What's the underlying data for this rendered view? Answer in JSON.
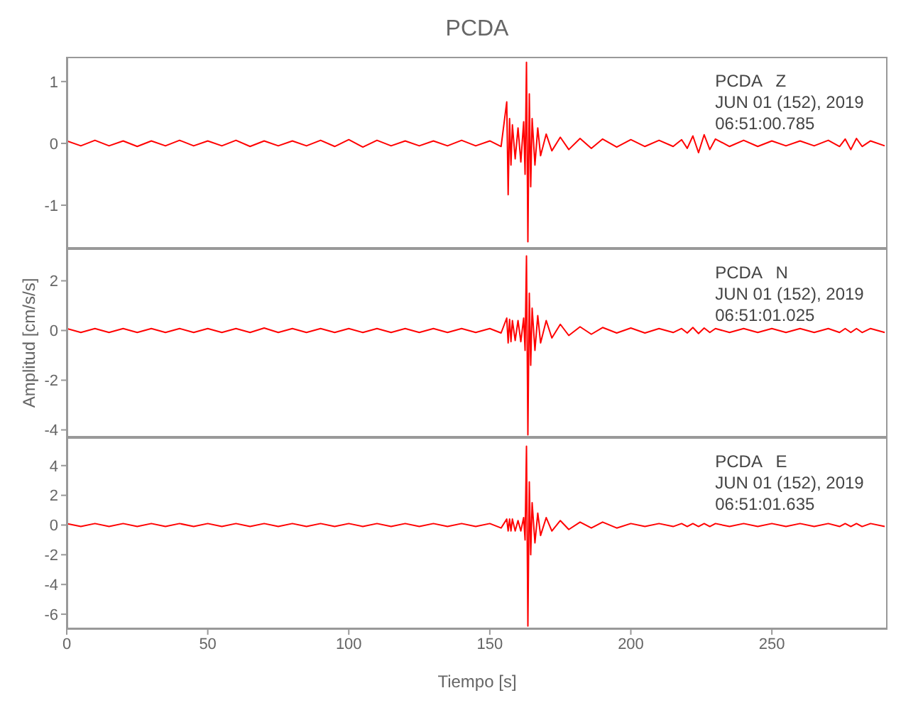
{
  "chart_data": [
    {
      "type": "line",
      "title": "PCDA",
      "annotations": [
        "PCDA   Z",
        "JUN 01 (152), 2019",
        "06:51:00.785"
      ],
      "tick_labels": "y",
      "x": [
        0,
        5,
        10,
        15,
        20,
        25,
        30,
        35,
        40,
        45,
        50,
        55,
        60,
        65,
        70,
        75,
        80,
        85,
        90,
        95,
        100,
        105,
        110,
        115,
        120,
        125,
        130,
        135,
        140,
        145,
        150,
        154,
        156,
        156.5,
        157,
        157.5,
        158,
        159,
        160,
        161,
        162,
        162.5,
        163,
        163.5,
        164,
        164.5,
        165,
        166,
        167,
        168,
        170,
        172,
        175,
        178,
        182,
        186,
        190,
        195,
        200,
        205,
        210,
        215,
        218,
        220,
        222,
        224,
        226,
        228,
        230,
        235,
        240,
        245,
        250,
        255,
        260,
        265,
        270,
        274,
        276,
        278,
        280,
        282,
        285,
        290
      ],
      "series": [
        {
          "color": "#ff0000",
          "values": [
            0.04,
            -0.04,
            0.05,
            -0.04,
            0.04,
            -0.05,
            0.04,
            -0.04,
            0.05,
            -0.04,
            0.04,
            -0.04,
            0.05,
            -0.05,
            0.04,
            -0.04,
            0.04,
            -0.04,
            0.05,
            -0.05,
            0.06,
            -0.06,
            0.05,
            -0.04,
            0.04,
            -0.04,
            0.04,
            -0.04,
            0.05,
            -0.04,
            0.04,
            -0.05,
            0.67,
            -0.83,
            0.4,
            -0.35,
            0.3,
            -0.25,
            0.25,
            -0.3,
            0.35,
            -0.5,
            1.31,
            -1.59,
            0.8,
            -0.7,
            0.4,
            -0.35,
            0.25,
            -0.2,
            0.15,
            -0.12,
            0.1,
            -0.1,
            0.08,
            -0.08,
            0.07,
            -0.06,
            0.06,
            -0.05,
            0.05,
            -0.05,
            0.06,
            -0.08,
            0.12,
            -0.15,
            0.14,
            -0.1,
            0.07,
            -0.05,
            0.05,
            -0.05,
            0.04,
            -0.04,
            0.04,
            -0.04,
            0.05,
            -0.05,
            0.07,
            -0.1,
            0.08,
            -0.05,
            0.04,
            -0.04
          ]
        }
      ],
      "xlim": [
        0,
        291
      ],
      "xticks": [
        0,
        50,
        100,
        150,
        200,
        250
      ],
      "ylim": [
        -1.7,
        1.4
      ],
      "yticks": [
        -1,
        0,
        1
      ]
    },
    {
      "type": "line",
      "ylabel": "Amplitud [cm/s/s]",
      "annotations": [
        "PCDA   N",
        "JUN 01 (152), 2019",
        "06:51:01.025"
      ],
      "tick_labels": "y",
      "x": [
        0,
        5,
        10,
        15,
        20,
        25,
        30,
        35,
        40,
        45,
        50,
        55,
        60,
        65,
        70,
        75,
        80,
        85,
        90,
        95,
        100,
        105,
        110,
        115,
        120,
        125,
        130,
        135,
        140,
        145,
        150,
        154,
        156,
        156.5,
        157,
        157.5,
        158,
        159,
        160,
        161,
        162,
        162.5,
        163,
        163.5,
        164,
        164.5,
        165,
        166,
        167,
        168,
        170,
        172,
        175,
        178,
        182,
        186,
        190,
        195,
        200,
        205,
        210,
        215,
        218,
        220,
        222,
        224,
        226,
        228,
        230,
        235,
        240,
        245,
        250,
        255,
        260,
        265,
        270,
        274,
        276,
        278,
        280,
        282,
        285,
        290
      ],
      "series": [
        {
          "color": "#ff0000",
          "values": [
            0.08,
            -0.08,
            0.08,
            -0.08,
            0.08,
            -0.08,
            0.08,
            -0.08,
            0.08,
            -0.08,
            0.08,
            -0.08,
            0.08,
            -0.08,
            0.1,
            -0.08,
            0.08,
            -0.08,
            0.08,
            -0.08,
            0.08,
            -0.08,
            0.08,
            -0.08,
            0.08,
            -0.08,
            0.08,
            -0.08,
            0.08,
            -0.08,
            0.08,
            -0.1,
            0.5,
            -0.5,
            0.45,
            -0.45,
            0.4,
            -0.4,
            0.4,
            -0.45,
            0.5,
            -0.8,
            3.0,
            -4.2,
            1.5,
            -1.4,
            0.9,
            -0.8,
            0.6,
            -0.5,
            0.4,
            -0.3,
            0.25,
            -0.2,
            0.15,
            -0.15,
            0.12,
            -0.1,
            0.1,
            -0.1,
            0.08,
            -0.08,
            0.08,
            -0.1,
            0.12,
            -0.12,
            0.1,
            -0.08,
            0.08,
            -0.08,
            0.08,
            -0.08,
            0.08,
            -0.08,
            0.08,
            -0.08,
            0.08,
            -0.08,
            0.08,
            -0.08,
            0.08,
            -0.08,
            0.08,
            -0.08
          ]
        }
      ],
      "xlim": [
        0,
        291
      ],
      "xticks": [
        0,
        50,
        100,
        150,
        200,
        250
      ],
      "ylim": [
        -4.3,
        3.3
      ],
      "yticks": [
        -4,
        -2,
        0,
        2
      ]
    },
    {
      "type": "line",
      "xlabel": "Tiempo [s]",
      "annotations": [
        "PCDA   E",
        "JUN 01 (152), 2019",
        "06:51:01.635"
      ],
      "x": [
        0,
        5,
        10,
        15,
        20,
        25,
        30,
        35,
        40,
        45,
        50,
        55,
        60,
        65,
        70,
        75,
        80,
        85,
        90,
        95,
        100,
        105,
        110,
        115,
        120,
        125,
        130,
        135,
        140,
        145,
        150,
        154,
        156,
        156.5,
        157,
        157.5,
        158,
        159,
        160,
        161,
        162,
        162.5,
        163,
        163.5,
        164,
        164.5,
        165,
        166,
        167,
        168,
        170,
        172,
        175,
        178,
        182,
        186,
        190,
        195,
        200,
        205,
        210,
        215,
        218,
        220,
        222,
        224,
        226,
        228,
        230,
        235,
        240,
        245,
        250,
        255,
        260,
        265,
        270,
        274,
        276,
        278,
        280,
        282,
        285,
        290
      ],
      "series": [
        {
          "color": "#ff0000",
          "values": [
            0.1,
            -0.1,
            0.1,
            -0.1,
            0.1,
            -0.1,
            0.1,
            -0.1,
            0.1,
            -0.1,
            0.1,
            -0.1,
            0.1,
            -0.1,
            0.1,
            -0.1,
            0.1,
            -0.1,
            0.1,
            -0.1,
            0.1,
            -0.1,
            0.1,
            -0.1,
            0.1,
            -0.1,
            0.1,
            -0.1,
            0.1,
            -0.1,
            0.1,
            -0.2,
            0.4,
            -0.4,
            0.4,
            -0.4,
            0.4,
            -0.4,
            0.3,
            -0.4,
            0.5,
            -1.0,
            5.3,
            -6.8,
            2.9,
            -2.0,
            1.5,
            -1.2,
            0.8,
            -0.7,
            0.5,
            -0.4,
            0.3,
            -0.3,
            0.2,
            -0.2,
            0.2,
            -0.2,
            0.1,
            -0.1,
            0.1,
            -0.1,
            0.1,
            -0.1,
            0.1,
            -0.1,
            0.1,
            -0.1,
            0.1,
            -0.1,
            0.1,
            -0.1,
            0.1,
            -0.1,
            0.1,
            -0.1,
            0.1,
            -0.1,
            0.1,
            -0.1,
            0.1,
            -0.1,
            0.1,
            -0.1
          ]
        }
      ],
      "xlim": [
        0,
        291
      ],
      "xticks": [
        0,
        50,
        100,
        150,
        200,
        250
      ],
      "ylim": [
        -7,
        5.9
      ],
      "yticks": [
        -6,
        -4,
        -2,
        0,
        2,
        4
      ]
    }
  ]
}
